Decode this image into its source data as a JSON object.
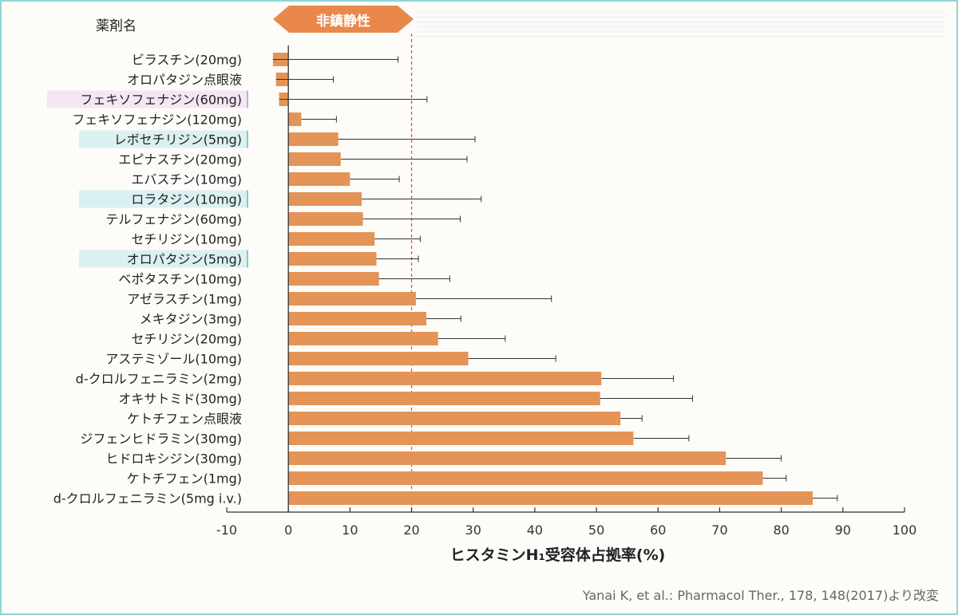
{
  "header": {
    "column_title": "薬剤名",
    "badge_label": "非鎮静性"
  },
  "chart_data": {
    "type": "bar",
    "orientation": "horizontal",
    "xlabel": "ヒスタミンH₁受容体占拠率(%)",
    "xlim": [
      -10,
      100
    ],
    "xticks": [
      -10,
      0,
      10,
      20,
      30,
      40,
      50,
      60,
      70,
      80,
      90,
      100
    ],
    "reference_line": {
      "value": 20,
      "style": "dashed",
      "color": "#e05a4f"
    },
    "bar_color": "#e49456",
    "items": [
      {
        "label": "ビラスチン(20mg)",
        "value": -2.5,
        "error": 20.3,
        "highlight": "none"
      },
      {
        "label": "オロパタジン点眼液",
        "value": -2.0,
        "error": 9.3,
        "highlight": "none"
      },
      {
        "label": "フェキソフェナジン(60mg)",
        "value": -1.5,
        "error": 24.0,
        "highlight": "pink"
      },
      {
        "label": "フェキソフェナジン(120mg)",
        "value": 2.1,
        "error": 5.7,
        "highlight": "none"
      },
      {
        "label": "レボセチリジン(5mg)",
        "value": 8.1,
        "error": 22.2,
        "highlight": "teal"
      },
      {
        "label": "エピナスチン(20mg)",
        "value": 8.5,
        "error": 20.5,
        "highlight": "none"
      },
      {
        "label": "エバスチン(10mg)",
        "value": 10.0,
        "error": 8.0,
        "highlight": "none"
      },
      {
        "label": "ロラタジン(10mg)",
        "value": 11.9,
        "error": 19.4,
        "highlight": "teal"
      },
      {
        "label": "テルフェナジン(60mg)",
        "value": 12.1,
        "error": 15.8,
        "highlight": "none"
      },
      {
        "label": "セチリジン(10mg)",
        "value": 14.0,
        "error": 7.4,
        "highlight": "none"
      },
      {
        "label": "オロパタジン(5mg)",
        "value": 14.3,
        "error": 6.8,
        "highlight": "teal"
      },
      {
        "label": "ベポタスチン(10mg)",
        "value": 14.7,
        "error": 11.5,
        "highlight": "none"
      },
      {
        "label": "アゼラスチン(1mg)",
        "value": 20.7,
        "error": 22.0,
        "highlight": "none"
      },
      {
        "label": "メキタジン(3mg)",
        "value": 22.4,
        "error": 5.6,
        "highlight": "none"
      },
      {
        "label": "セチリジン(20mg)",
        "value": 24.3,
        "error": 10.9,
        "highlight": "none"
      },
      {
        "label": "アステミゾール(10mg)",
        "value": 29.2,
        "error": 14.2,
        "highlight": "none"
      },
      {
        "label": "d-クロルフェニラミン(2mg)",
        "value": 50.8,
        "error": 11.7,
        "highlight": "none"
      },
      {
        "label": "オキサトミド(30mg)",
        "value": 50.6,
        "error": 15.0,
        "highlight": "none"
      },
      {
        "label": "ケトチフェン点眼液",
        "value": 53.9,
        "error": 3.5,
        "highlight": "none"
      },
      {
        "label": "ジフェンヒドラミン(30mg)",
        "value": 56.0,
        "error": 9.0,
        "highlight": "none"
      },
      {
        "label": "ヒドロキシジン(30mg)",
        "value": 71.0,
        "error": 9.0,
        "highlight": "none"
      },
      {
        "label": "ケトチフェン(1mg)",
        "value": 77.0,
        "error": 3.8,
        "highlight": "none"
      },
      {
        "label": "d-クロルフェニラミン(5mg i.v.)",
        "value": 85.1,
        "error": 4.0,
        "highlight": "none"
      }
    ]
  },
  "source": "Yanai K, et al.: Pharmacol Ther., 178, 148(2017)より改変"
}
